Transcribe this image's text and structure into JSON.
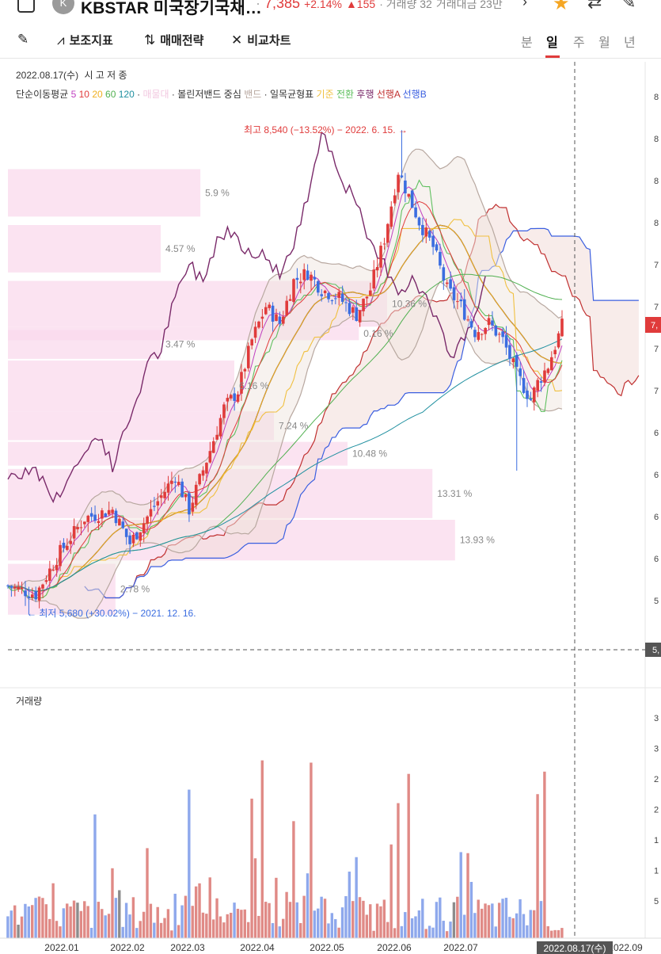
{
  "header": {
    "logo_letter": "K",
    "name": "KBSTAR 미국장기국채…",
    "price": "7,385",
    "change_pct": "+2.14%",
    "change_abs": "▲155",
    "volume_label": "· 거래량 32",
    "amount_label": "거래대금 23만"
  },
  "toolbar": {
    "indicator": "보조지표",
    "strategy": "매매전략",
    "compare": "비교차트",
    "periods": [
      "분",
      "일",
      "주",
      "월",
      "년"
    ],
    "active_period": "일"
  },
  "info": {
    "date": "2022.08.17(수)",
    "ohlc": "시 고 저 종",
    "sma_label": "단순이동평균",
    "sma_periods": [
      "5",
      "10",
      "20",
      "60",
      "120"
    ],
    "sma_colors": [
      "#c040c0",
      "#e03b3b",
      "#f0b020",
      "#50b050",
      "#2090a0"
    ],
    "faded_label": "매물대",
    "bollinger": "· 볼린저밴드 중심",
    "band": "밴드",
    "ichimoku": "· 일목균형표",
    "ich_kijun": "기준",
    "ich_tenkan": "전환",
    "ich_chikou": "후행",
    "ich_span_a": "선행A",
    "ich_span_b": "선행B",
    "volume_title": "거래량"
  },
  "colors": {
    "up": "#e03b3b",
    "down": "#3b6de0",
    "vol_up": "#e08a86",
    "vol_down": "#8ea8ec",
    "vol_gray": "#8c8c8c",
    "profile": "#f9d9ec",
    "kijun": "#f0c040",
    "tenkan": "#60c060",
    "chikou": "#7a2a6a",
    "span_a": "#c03030",
    "span_b": "#3b5fe0",
    "band": "#b8a8a0",
    "bb_mid": "#4a2020"
  },
  "chart_data": {
    "type": "candlestick",
    "title": "",
    "x_ticks": [
      "2022.01",
      "2022.02",
      "2022.03",
      "2022.04",
      "2022.05",
      "2022.06",
      "2022.07",
      "2022.08",
      "2022.09"
    ],
    "crosshair_label": "2022.08.17(수)",
    "price_axis_ticks": [
      "8",
      "8",
      "8",
      "8",
      "7",
      "7",
      "7",
      "7",
      "6",
      "6",
      "6",
      "6",
      "5"
    ],
    "current_price_tag": "7,",
    "crosshair_price_tag": "5,",
    "volume_axis_ticks": [
      "3",
      "3",
      "2",
      "2",
      "1",
      "1",
      "5"
    ],
    "annotations": {
      "high": "최고 8,540 (−13.52%) − 2022. 6. 15. →",
      "low": "← 최저 5,680 (+30.02%) − 2021. 12. 16."
    },
    "volume_profile": [
      {
        "price_top": 8310,
        "price_bottom": 8030,
        "pct": "5.9 %",
        "len": 0.34
      },
      {
        "price_top": 7980,
        "price_bottom": 7700,
        "pct": "4.57 %",
        "len": 0.27
      },
      {
        "price_top": 7650,
        "price_bottom": 7380,
        "pct": "10.36 %",
        "len": 0.67
      },
      {
        "price_top": 7360,
        "price_bottom": 7190,
        "pct": "3.47 %",
        "len": 0.27
      },
      {
        "price_top": 7180,
        "price_bottom": 6880,
        "pct": "6.16 %",
        "len": 0.4
      },
      {
        "price_top": 6880,
        "price_bottom": 6710,
        "pct": "7.24 %",
        "len": 0.47
      },
      {
        "price_top": 6700,
        "price_bottom": 6560,
        "pct": "10.48 %",
        "len": 0.6
      },
      {
        "price_top": 6540,
        "price_bottom": 6250,
        "pct": "13.31 %",
        "len": 0.75
      },
      {
        "price_top": 6240,
        "price_bottom": 6000,
        "pct": "13.93 %",
        "len": 0.79
      },
      {
        "price_top": 5980,
        "price_bottom": 5680,
        "pct": "2.78 %",
        "len": 0.19
      },
      {
        "price_top": 7380,
        "price_bottom": 7300,
        "pct": "0.16 %",
        "len": 0.62
      }
    ],
    "series_legend": [
      "5",
      "10",
      "20",
      "60",
      "120"
    ]
  }
}
